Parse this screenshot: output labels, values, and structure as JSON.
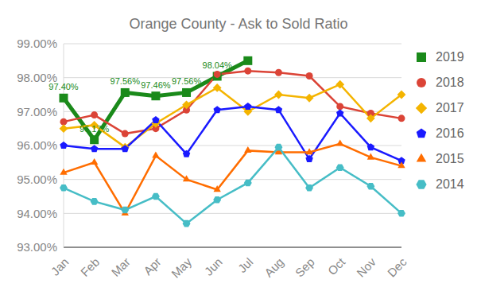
{
  "chart_data": {
    "type": "line",
    "title": "Orange County - Ask to Sold Ratio",
    "categories": [
      "Jan",
      "Feb",
      "Mar",
      "Apr",
      "May",
      "Jun",
      "Jul",
      "Aug",
      "Sep",
      "Oct",
      "Nov",
      "Dec"
    ],
    "ylim": [
      93,
      99
    ],
    "yticks": [
      {
        "value": 93,
        "label": "93.00%"
      },
      {
        "value": 94,
        "label": "94.00%"
      },
      {
        "value": 95,
        "label": "95.00%"
      },
      {
        "value": 96,
        "label": "96.00%"
      },
      {
        "value": 97,
        "label": "97.00%"
      },
      {
        "value": 98,
        "label": "98.00%"
      },
      {
        "value": 99,
        "label": "99.00%"
      }
    ],
    "grid": true,
    "legend": "right",
    "series": [
      {
        "name": "2019",
        "color": "#1a8a1a",
        "marker": "square",
        "data_labels": true,
        "values": [
          97.4,
          96.17,
          97.56,
          97.46,
          97.56,
          98.04,
          98.5,
          null,
          null,
          null,
          null,
          null
        ],
        "value_labels": [
          "97.40%",
          "96.17%",
          "97.56%",
          "97.46%",
          "97.56%",
          "98.04%",
          null,
          null,
          null,
          null,
          null,
          null
        ]
      },
      {
        "name": "2018",
        "color": "#db4437",
        "marker": "circle",
        "values": [
          96.7,
          96.9,
          96.35,
          96.5,
          97.05,
          98.1,
          98.2,
          98.15,
          98.05,
          97.15,
          96.95,
          96.8
        ]
      },
      {
        "name": "2017",
        "color": "#f4b400",
        "marker": "diamond",
        "values": [
          96.5,
          96.6,
          95.95,
          96.65,
          97.2,
          97.7,
          97.0,
          97.5,
          97.4,
          97.8,
          96.8,
          97.5
        ]
      },
      {
        "name": "2016",
        "color": "#1a1aff",
        "marker": "pentagon",
        "values": [
          96.0,
          95.9,
          95.9,
          96.75,
          95.75,
          97.05,
          97.15,
          97.05,
          95.6,
          96.95,
          95.95,
          95.55
        ]
      },
      {
        "name": "2015",
        "color": "#ff6d00",
        "marker": "triangle",
        "values": [
          95.2,
          95.5,
          94.0,
          95.7,
          95.0,
          94.7,
          95.85,
          95.8,
          95.8,
          96.05,
          95.65,
          95.4
        ]
      },
      {
        "name": "2014",
        "color": "#46bdc6",
        "marker": "hexagon",
        "values": [
          94.75,
          94.35,
          94.1,
          94.5,
          93.7,
          94.4,
          94.9,
          95.95,
          94.75,
          95.35,
          94.8,
          94.0
        ]
      }
    ]
  }
}
